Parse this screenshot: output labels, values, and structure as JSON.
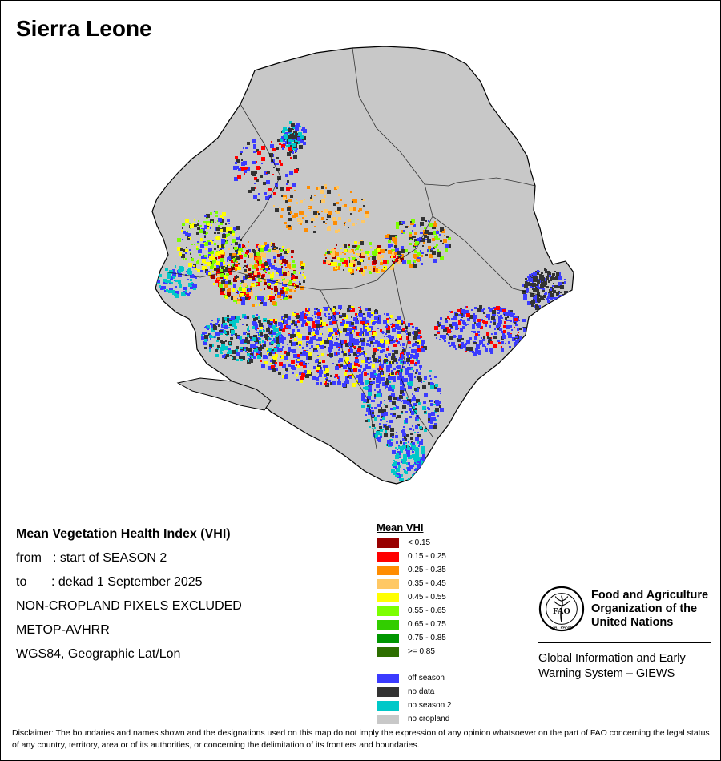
{
  "title": "Sierra Leone",
  "map": {
    "colors": {
      "land": "#c8c8c8",
      "border": "#000000",
      "off_season": "#3b3bff",
      "no_data": "#333333",
      "no_season_2": "#00c8c8",
      "vhi_lt_015": "#990000",
      "vhi_015_025": "#ff0000",
      "vhi_025_035": "#ff8c00",
      "vhi_035_045": "#ffc864",
      "vhi_045_055": "#ffff00",
      "vhi_055_065": "#7cff00",
      "vhi_065_075": "#32cd00",
      "vhi_075_085": "#009600",
      "vhi_ge_085": "#2d6e00"
    }
  },
  "info": {
    "heading": "Mean Vegetation Health Index (VHI)",
    "from_label": "from",
    "from_value": ": start of SEASON 2",
    "to_label": "to",
    "to_value": ": dekad 1 September 2025",
    "line3": "NON-CROPLAND PIXELS EXCLUDED",
    "line4": "METOP-AVHRR",
    "line5": "WGS84, Geographic Lat/Lon"
  },
  "legend": {
    "title": "Mean VHI",
    "classes": [
      {
        "label": "< 0.15",
        "color": "#990000"
      },
      {
        "label": "0.15 - 0.25",
        "color": "#ff0000"
      },
      {
        "label": "0.25 - 0.35",
        "color": "#ff8c00"
      },
      {
        "label": "0.35 - 0.45",
        "color": "#ffc864"
      },
      {
        "label": "0.45 - 0.55",
        "color": "#ffff00"
      },
      {
        "label": "0.55 - 0.65",
        "color": "#7cff00"
      },
      {
        "label": "0.65 - 0.75",
        "color": "#32cd00"
      },
      {
        "label": "0.75 - 0.85",
        "color": "#009600"
      },
      {
        "label": ">= 0.85",
        "color": "#2d6e00"
      }
    ],
    "other": [
      {
        "label": "off season",
        "color": "#3b3bff"
      },
      {
        "label": "no data",
        "color": "#333333"
      },
      {
        "label": "no season 2",
        "color": "#00c8c8"
      },
      {
        "label": "no cropland",
        "color": "#c8c8c8"
      }
    ]
  },
  "fao": {
    "org_line1": "Food and Agriculture",
    "org_line2": "Organization of the",
    "org_line3": "United Nations",
    "logo_text": "FAO",
    "logo_ring_text": "FIAT PANIS",
    "giews_line1": "Global Information and Early",
    "giews_line2": "Warning System – GIEWS"
  },
  "disclaimer": "Disclaimer: The boundaries and names shown and the designations used on this map do not imply the expression of any opinion whatsoever on the part of FAO concerning the legal status of any country, territory, area or of its authorities, or concerning the delimitation of its frontiers and boundaries."
}
